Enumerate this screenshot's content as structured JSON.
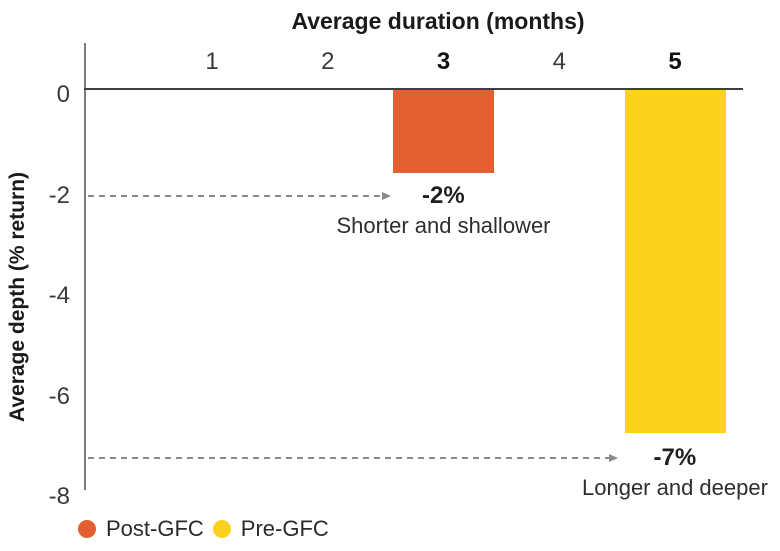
{
  "chart_data": {
    "type": "bar",
    "xlabel": "Average duration (months)",
    "ylabel": "Average depth (% return)",
    "xlabel_position": "top",
    "grid": false,
    "x_ticks": [
      {
        "value": 1,
        "bold": false
      },
      {
        "value": 2,
        "bold": false
      },
      {
        "value": 3,
        "bold": true
      },
      {
        "value": 4,
        "bold": false
      },
      {
        "value": 5,
        "bold": true
      }
    ],
    "y_ticks": [
      0,
      -2,
      -4,
      -6,
      -8
    ],
    "x_range": [
      0,
      5.6
    ],
    "y_range": [
      0,
      -8
    ],
    "series": [
      {
        "name": "Post-GFC",
        "color": "#E2602F",
        "duration_months": 3,
        "depth_pct": -2,
        "depth_label": "-2%",
        "bar_rendered_depth": -1.65,
        "annotation": "Shorter and shallower"
      },
      {
        "name": "Pre-GFC",
        "color": "#FCD21E",
        "duration_months": 5,
        "depth_pct": -7,
        "depth_label": "-7%",
        "bar_rendered_depth": -6.83,
        "annotation": "Longer and deeper"
      }
    ],
    "arrows": [
      {
        "depth": -2.11,
        "to_x": 2.55
      },
      {
        "depth": -7.32,
        "to_x": 4.51
      }
    ],
    "legend_position": "bottom-left",
    "legend": [
      {
        "label": "Post-GFC",
        "color": "#E2602F"
      },
      {
        "label": "Pre-GFC",
        "color": "#FCD21E"
      }
    ],
    "colors": {
      "axis_vertical": "#7b7b7b",
      "axis_zero_line": "#3f3f3f",
      "arrow": "#8a8a8a",
      "background": "#ffffff"
    }
  }
}
